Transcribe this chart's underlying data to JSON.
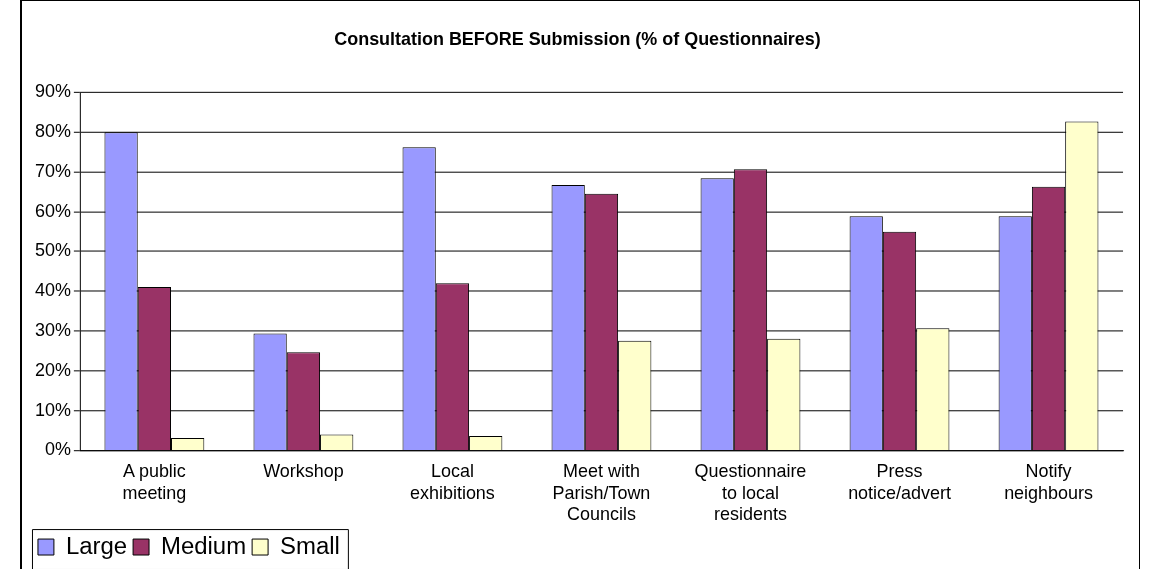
{
  "chart_data": {
    "type": "bar",
    "title": "Consultation BEFORE Submission (% of Questionnaires)",
    "categories": [
      "A public meeting",
      "Workshop",
      "Local exhibitions",
      "Meet with Parish/Town Councils",
      "Questionnaire to local residents",
      "Press notice/advert",
      "Notify neighbours"
    ],
    "series": [
      {
        "name": "Large",
        "color": "#9999ff",
        "values": [
          80.0,
          29.4,
          76.2,
          66.7,
          68.4,
          58.9,
          58.9
        ]
      },
      {
        "name": "Medium",
        "color": "#993366",
        "values": [
          41.1,
          24.7,
          42.0,
          64.5,
          70.7,
          55.0,
          66.3
        ]
      },
      {
        "name": "Small",
        "color": "#ffffcc",
        "values": [
          3.1,
          4.0,
          3.6,
          27.6,
          28.1,
          30.7,
          82.7
        ]
      }
    ],
    "ylim": [
      0,
      90
    ],
    "yticks": [
      {
        "value": 0,
        "label": "0%"
      },
      {
        "value": 10,
        "label": "10%"
      },
      {
        "value": 20,
        "label": "20%"
      },
      {
        "value": 30,
        "label": "30%"
      },
      {
        "value": 40,
        "label": "40%"
      },
      {
        "value": 50,
        "label": "50%"
      },
      {
        "value": 60,
        "label": "60%"
      },
      {
        "value": 70,
        "label": "70%"
      },
      {
        "value": 80,
        "label": "80%"
      },
      {
        "value": 90,
        "label": "90%"
      }
    ],
    "grid": "y",
    "legend": "bottom left"
  }
}
